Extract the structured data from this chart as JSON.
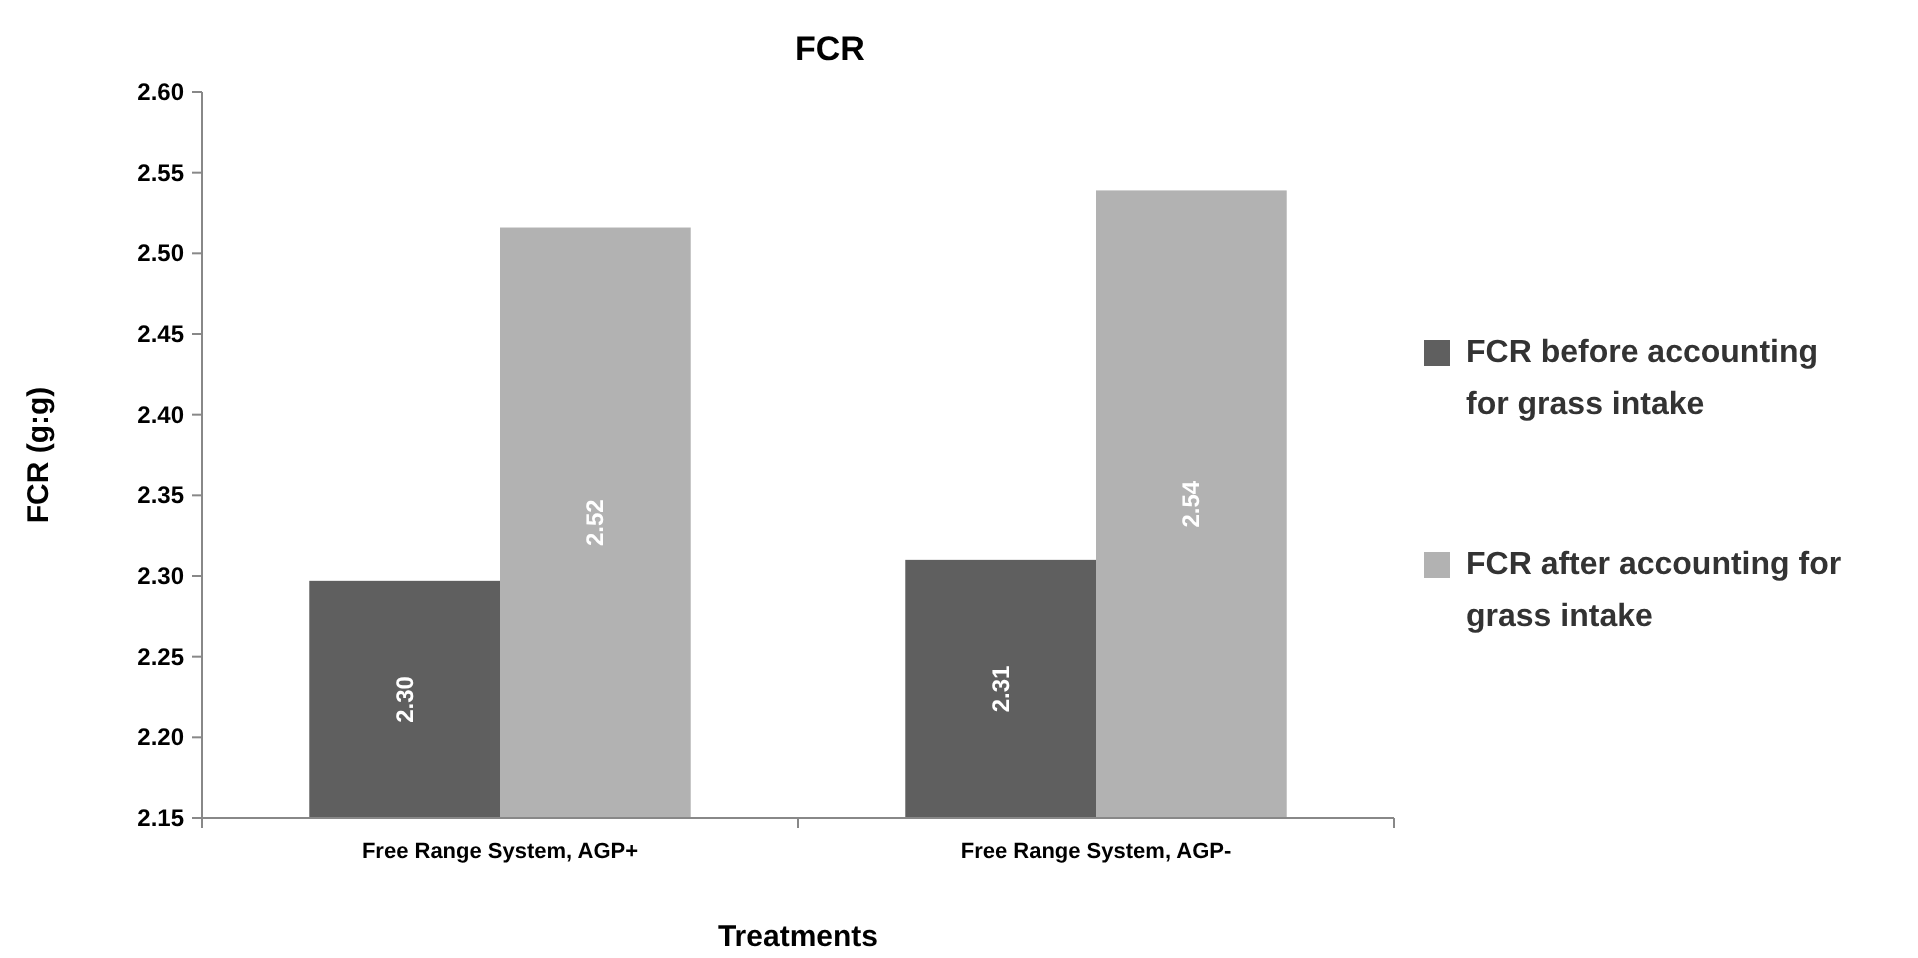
{
  "chart_data": {
    "type": "bar",
    "title": "FCR",
    "xlabel": "Treatments",
    "ylabel": "FCR (g:g)",
    "categories": [
      "Free Range System, AGP+",
      "Free Range System, AGP-"
    ],
    "series": [
      {
        "name": "FCR before accounting for grass intake",
        "color": "#5f5f5f",
        "values": [
          2.297,
          2.31
        ],
        "value_labels": [
          "2.30",
          "2.31"
        ]
      },
      {
        "name": "FCR after accounting for grass intake",
        "color": "#b2b2b2",
        "values": [
          2.516,
          2.539
        ],
        "value_labels": [
          "2.52",
          "2.54"
        ]
      }
    ],
    "ylim": [
      2.15,
      2.6
    ],
    "yticks": [
      {
        "value": 2.15,
        "label": "2.15"
      },
      {
        "value": 2.2,
        "label": "2.20"
      },
      {
        "value": 2.25,
        "label": "2.25"
      },
      {
        "value": 2.3,
        "label": "2.30"
      },
      {
        "value": 2.35,
        "label": "2.35"
      },
      {
        "value": 2.4,
        "label": "2.40"
      },
      {
        "value": 2.45,
        "label": "2.45"
      },
      {
        "value": 2.5,
        "label": "2.50"
      },
      {
        "value": 2.55,
        "label": "2.55"
      },
      {
        "value": 2.6,
        "label": "2.60"
      }
    ],
    "grid": false,
    "legend": "right"
  }
}
